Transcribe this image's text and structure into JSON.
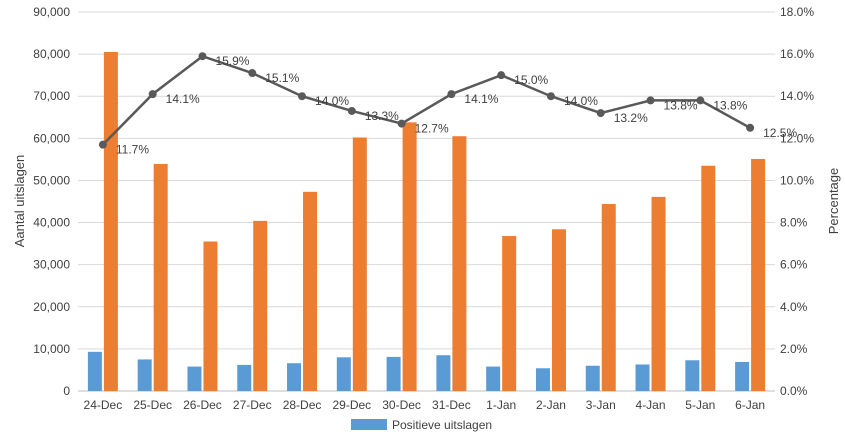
{
  "chart_data": {
    "type": "bar",
    "categories": [
      "24-Dec",
      "25-Dec",
      "26-Dec",
      "27-Dec",
      "28-Dec",
      "29-Dec",
      "30-Dec",
      "31-Dec",
      "1-Jan",
      "2-Jan",
      "3-Jan",
      "4-Jan",
      "5-Jan",
      "6-Jan"
    ],
    "ylabel": "Aantal uitslagen",
    "y2label": "Percentage",
    "ylim": [
      0,
      90000
    ],
    "y2lim": [
      0,
      18
    ],
    "y_ticks": [
      "0",
      "10,000",
      "20,000",
      "30,000",
      "40,000",
      "50,000",
      "60,000",
      "70,000",
      "80,000",
      "90,000"
    ],
    "y2_ticks": [
      "0.0%",
      "2.0%",
      "4.0%",
      "6.0%",
      "8.0%",
      "10.0%",
      "12.0%",
      "14.0%",
      "16.0%",
      "18.0%"
    ],
    "grid": true,
    "legend_position": "bottom",
    "series": [
      {
        "name": "Positieve uitslagen",
        "type": "bar",
        "color": "#5b9bd5",
        "values": [
          9300,
          7500,
          5800,
          6200,
          6600,
          8000,
          8100,
          8500,
          5800,
          5400,
          6000,
          6300,
          7300,
          6900
        ]
      },
      {
        "type": "bar",
        "color": "#ed7d31",
        "values": [
          80500,
          53900,
          35500,
          40400,
          47300,
          60200,
          63800,
          60500,
          36800,
          38400,
          44400,
          46100,
          53500,
          55100
        ]
      },
      {
        "type": "line",
        "axis": "right",
        "color": "#595959",
        "values": [
          11.7,
          14.1,
          15.9,
          15.1,
          14.0,
          13.3,
          12.7,
          14.1,
          15.0,
          14.0,
          13.2,
          13.8,
          13.8,
          12.5
        ],
        "labels": [
          "11.7%",
          "14.1%",
          "15.9%",
          "15.1%",
          "14.0%",
          "13.3%",
          "12.7%",
          "14.1%",
          "15.0%",
          "14.0%",
          "13.2%",
          "13.8%",
          "13.8%",
          "12.5%"
        ]
      }
    ]
  }
}
